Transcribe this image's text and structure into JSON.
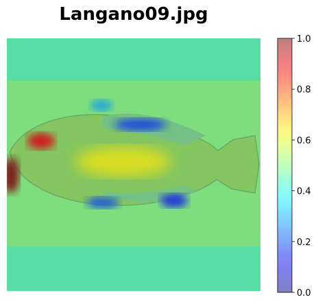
{
  "chart_data": {
    "type": "heatmap",
    "title": "Langano09.jpg",
    "xlabel": "",
    "ylabel": "",
    "axes": "off",
    "overlay": "attention heatmap over fish photograph",
    "colormap": "jet",
    "alpha": 0.5,
    "colorbar": {
      "min": 0.0,
      "max": 1.0,
      "ticks": [
        0.0,
        0.2,
        0.4,
        0.6,
        0.8,
        1.0
      ],
      "tick_labels": [
        "0.0",
        "0.2",
        "0.4",
        "0.6",
        "0.8",
        "1.0"
      ],
      "placement": "right"
    },
    "background_value": 0.45,
    "photo_band_value": 0.5,
    "hotspots": [
      {
        "name": "head-left-edge",
        "value": 1.0
      },
      {
        "name": "eye",
        "value": 0.9
      },
      {
        "name": "mid-body",
        "value": 0.62
      },
      {
        "name": "dorsal-fin",
        "value": 0.18
      },
      {
        "name": "pelvic-fin",
        "value": 0.2
      },
      {
        "name": "anal-fin",
        "value": 0.15
      },
      {
        "name": "pectoral-region",
        "value": 0.3
      }
    ]
  }
}
